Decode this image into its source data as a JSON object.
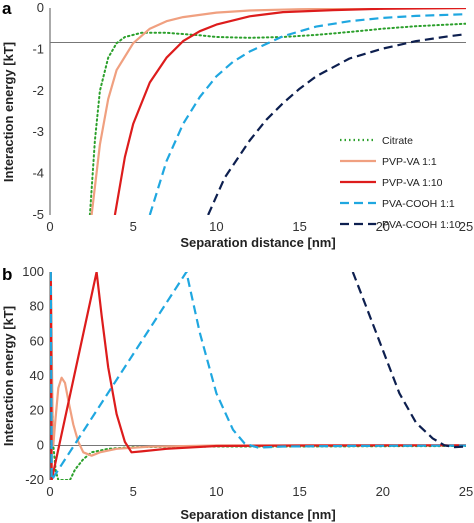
{
  "chart_data": [
    {
      "panel_label": "a",
      "type": "line",
      "xlabel": "Separation distance [nm]",
      "ylabel": "Interaction energy [kT]",
      "xlim": [
        0,
        25
      ],
      "ylim": [
        -5,
        0
      ],
      "xticks": [
        "0",
        "5",
        "10",
        "15",
        "20",
        "25"
      ],
      "yticks": [
        "0",
        "-1",
        "-2",
        "-3",
        "-4",
        "-5"
      ],
      "legend_position": "bottom-right",
      "series": [
        {
          "name": "Citrate",
          "color": "#2ca02c",
          "dash": "dotted",
          "points": [
            [
              2.4,
              -5
            ],
            [
              2.7,
              -3.2
            ],
            [
              3.0,
              -2.0
            ],
            [
              3.5,
              -1.2
            ],
            [
              4.0,
              -0.85
            ],
            [
              4.5,
              -0.7
            ],
            [
              5.5,
              -0.6
            ],
            [
              7,
              -0.6
            ],
            [
              9,
              -0.66
            ],
            [
              10,
              -0.7
            ],
            [
              12,
              -0.72
            ],
            [
              14,
              -0.7
            ],
            [
              16,
              -0.65
            ],
            [
              18,
              -0.58
            ],
            [
              20,
              -0.5
            ],
            [
              22,
              -0.44
            ],
            [
              25,
              -0.38
            ]
          ]
        },
        {
          "name": "PVP-VA 1:1",
          "color": "#f0a080",
          "dash": "solid",
          "points": [
            [
              2.5,
              -5
            ],
            [
              3.0,
              -3.3
            ],
            [
              3.5,
              -2.2
            ],
            [
              4.0,
              -1.5
            ],
            [
              5.0,
              -0.85
            ],
            [
              6.0,
              -0.5
            ],
            [
              7.0,
              -0.32
            ],
            [
              8.0,
              -0.22
            ],
            [
              10,
              -0.11
            ],
            [
              12,
              -0.06
            ],
            [
              15,
              -0.03
            ],
            [
              20,
              -0.01
            ],
            [
              25,
              0
            ]
          ]
        },
        {
          "name": "PVP-VA 1:10",
          "color": "#dd1c1c",
          "dash": "solid",
          "points": [
            [
              3.9,
              -5
            ],
            [
              4.5,
              -3.6
            ],
            [
              5.0,
              -2.8
            ],
            [
              6.0,
              -1.8
            ],
            [
              7.0,
              -1.2
            ],
            [
              8.0,
              -0.8
            ],
            [
              9.0,
              -0.56
            ],
            [
              10,
              -0.4
            ],
            [
              12,
              -0.2
            ],
            [
              14,
              -0.1
            ],
            [
              17,
              -0.05
            ],
            [
              20,
              -0.02
            ],
            [
              25,
              0
            ]
          ]
        },
        {
          "name": "PVA-COOH 1:1",
          "color": "#1fa7e0",
          "dash": "dashed",
          "points": [
            [
              6.0,
              -5
            ],
            [
              7.0,
              -3.7
            ],
            [
              8.0,
              -2.8
            ],
            [
              9.0,
              -2.15
            ],
            [
              10,
              -1.65
            ],
            [
              11,
              -1.3
            ],
            [
              12,
              -1.05
            ],
            [
              14,
              -0.68
            ],
            [
              16,
              -0.45
            ],
            [
              18,
              -0.32
            ],
            [
              20,
              -0.24
            ],
            [
              22,
              -0.19
            ],
            [
              25,
              -0.15
            ]
          ]
        },
        {
          "name": "PVA-COOH 1:10",
          "color": "#0d1f4f",
          "dash": "dashed",
          "points": [
            [
              9.5,
              -5
            ],
            [
              10.5,
              -4.1
            ],
            [
              12,
              -3.2
            ],
            [
              13,
              -2.7
            ],
            [
              14,
              -2.3
            ],
            [
              15,
              -1.95
            ],
            [
              16,
              -1.65
            ],
            [
              18,
              -1.22
            ],
            [
              20,
              -0.98
            ],
            [
              22,
              -0.8
            ],
            [
              24,
              -0.68
            ],
            [
              25,
              -0.63
            ]
          ]
        }
      ]
    },
    {
      "panel_label": "b",
      "type": "line",
      "xlabel": "Separation distance [nm]",
      "ylabel": "Interaction energy [kT]",
      "xlim": [
        0,
        25
      ],
      "ylim": [
        -20,
        100
      ],
      "xticks": [
        "0",
        "5",
        "10",
        "15",
        "20",
        "25"
      ],
      "yticks": [
        "100",
        "80",
        "60",
        "40",
        "20",
        "0",
        "-20"
      ],
      "series": [
        {
          "name": "Citrate",
          "color": "#2ca02c",
          "dash": "dotted",
          "points": [
            [
              0.05,
              100
            ],
            [
              0.1,
              40
            ],
            [
              0.2,
              0
            ],
            [
              0.35,
              -15
            ],
            [
              0.5,
              -20
            ],
            [
              1.2,
              -20
            ],
            [
              1.5,
              -14
            ],
            [
              2,
              -8
            ],
            [
              2.5,
              -4
            ],
            [
              3.5,
              -2
            ],
            [
              5,
              -1
            ],
            [
              10,
              -0.7
            ],
            [
              15,
              -0.7
            ],
            [
              20,
              -0.5
            ],
            [
              25,
              -0.4
            ]
          ]
        },
        {
          "name": "PVP-VA 1:1",
          "color": "#f0a080",
          "dash": "solid",
          "points": [
            [
              0.05,
              100
            ],
            [
              0.1,
              60
            ],
            [
              0.15,
              20
            ],
            [
              0.2,
              0
            ],
            [
              0.3,
              12
            ],
            [
              0.5,
              33
            ],
            [
              0.7,
              39
            ],
            [
              0.9,
              36
            ],
            [
              1.1,
              26
            ],
            [
              1.4,
              12
            ],
            [
              1.7,
              2
            ],
            [
              2,
              -4
            ],
            [
              2.5,
              -6
            ],
            [
              3,
              -4
            ],
            [
              4,
              -2
            ],
            [
              6,
              -0.8
            ],
            [
              10,
              -0.1
            ],
            [
              25,
              0
            ]
          ]
        },
        {
          "name": "PVP-VA 1:10",
          "color": "#dd1c1c",
          "dash": "solid",
          "points": [
            [
              0.05,
              100
            ],
            [
              0.1,
              -20
            ],
            [
              2.8,
              100
            ],
            [
              3.1,
              75
            ],
            [
              3.5,
              45
            ],
            [
              4.0,
              18
            ],
            [
              4.5,
              2
            ],
            [
              4.9,
              -4
            ],
            [
              5.5,
              -3.5
            ],
            [
              7,
              -2
            ],
            [
              10,
              -0.4
            ],
            [
              15,
              -0.1
            ],
            [
              25,
              0
            ]
          ]
        },
        {
          "name": "PVA-COOH 1:1",
          "color": "#1fa7e0",
          "dash": "dashed",
          "points": [
            [
              0.05,
              100
            ],
            [
              0.1,
              -20
            ],
            [
              8.2,
              100
            ],
            [
              9.0,
              65
            ],
            [
              10,
              30
            ],
            [
              11,
              9
            ],
            [
              11.7,
              1
            ],
            [
              12.5,
              -1.3
            ],
            [
              14,
              -0.7
            ],
            [
              18,
              -0.3
            ],
            [
              25,
              -0.15
            ]
          ]
        },
        {
          "name": "PVA-COOH 1:10",
          "color": "#0d1f4f",
          "dash": "dashed",
          "points": [
            [
              18.2,
              100
            ],
            [
              19,
              80
            ],
            [
              20,
              55
            ],
            [
              21,
              30
            ],
            [
              22,
              13
            ],
            [
              23,
              4
            ],
            [
              23.7,
              0
            ],
            [
              24.3,
              -1
            ],
            [
              25,
              -0.7
            ]
          ]
        }
      ]
    }
  ]
}
